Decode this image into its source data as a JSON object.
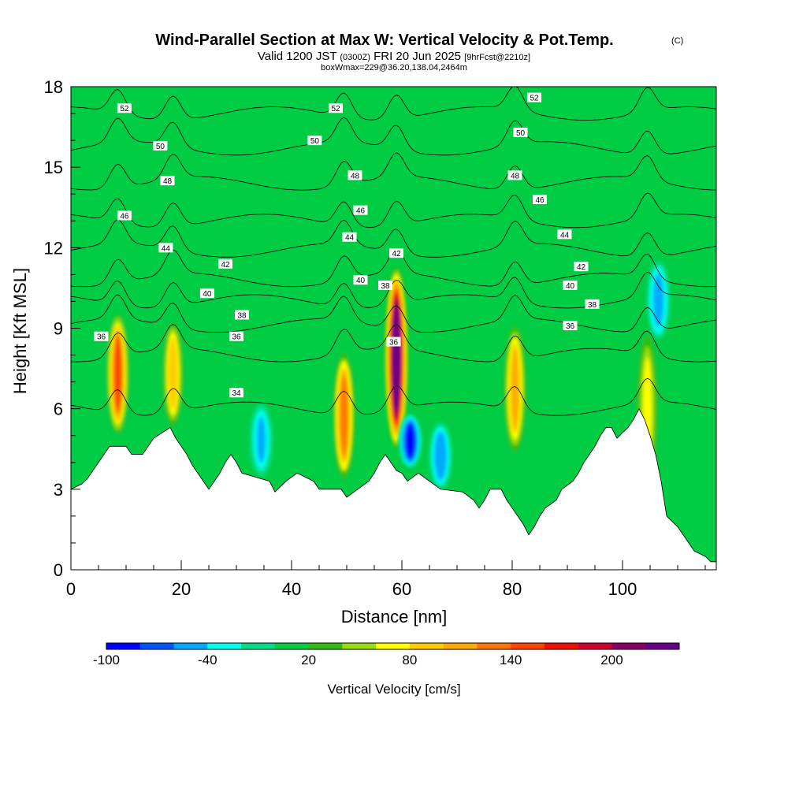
{
  "chart_data": {
    "type": "heatmap",
    "title": {
      "main": "Wind-Parallel Section at Max W: Vertical Velocity & Pot.Temp.",
      "copyright": "(C)",
      "valid_prefix": "Valid 1200 JST",
      "valid_utc": "(0300Z)",
      "valid_date": "FRI 20 Jun 2025",
      "forecast": "[9hrFcst@2210z]",
      "box": "boxWmax=229@36.20,138.04,2464m"
    },
    "xlabel": "Distance [nm]",
    "ylabel": "Height [Kft MSL]",
    "xlim": [
      0,
      117
    ],
    "ylim": [
      0,
      18
    ],
    "x_ticks": [
      "0",
      "20",
      "40",
      "60",
      "80",
      "100"
    ],
    "y_ticks": [
      "0",
      "3",
      "6",
      "9",
      "12",
      "15",
      "18"
    ],
    "colorbar": {
      "label": "Vertical Velocity [cm/s]",
      "tick_labels": [
        "-100",
        "-40",
        "20",
        "80",
        "140",
        "200"
      ],
      "levels": [
        -100,
        -80,
        -60,
        -40,
        -20,
        0,
        20,
        40,
        60,
        80,
        100,
        120,
        140,
        160,
        180,
        200,
        220,
        240
      ],
      "colors": [
        "#0000ff",
        "#0055ff",
        "#00aaff",
        "#00ffee",
        "#00dd88",
        "#00cc44",
        "#33bb11",
        "#99dd11",
        "#ffff00",
        "#ffcc00",
        "#ffaa00",
        "#ff7700",
        "#ff4400",
        "#ee1100",
        "#cc0033",
        "#880066",
        "#660088"
      ]
    },
    "background_w": 0,
    "updrafts": [
      {
        "x": 8.5,
        "y_bottom": 5.0,
        "y_top": 9.6,
        "peak_w": 140
      },
      {
        "x": 18.5,
        "y_bottom": 5.2,
        "y_top": 9.4,
        "peak_w": 90
      },
      {
        "x": 49.5,
        "y_bottom": 3.3,
        "y_top": 8.2,
        "peak_w": 130
      },
      {
        "x": 59.0,
        "y_bottom": 4.5,
        "y_top": 11.3,
        "peak_w": 229
      },
      {
        "x": 80.5,
        "y_bottom": 4.3,
        "y_top": 9.2,
        "peak_w": 110
      },
      {
        "x": 104.5,
        "y_bottom": 3.0,
        "y_top": 9.0,
        "peak_w": 70
      }
    ],
    "downdrafts": [
      {
        "x": 61.5,
        "y_bottom": 3.8,
        "y_top": 5.8,
        "peak_w": -100
      },
      {
        "x": 34.5,
        "y_bottom": 3.5,
        "y_top": 6.2,
        "peak_w": -50
      },
      {
        "x": 67.0,
        "y_bottom": 3.0,
        "y_top": 5.5,
        "peak_w": -60
      },
      {
        "x": 106.5,
        "y_bottom": 8.6,
        "y_top": 11.5,
        "peak_w": -55
      }
    ],
    "terrain": [
      [
        0,
        3.0
      ],
      [
        2,
        3.2
      ],
      [
        3,
        3.4
      ],
      [
        4,
        3.7
      ],
      [
        5,
        4.0
      ],
      [
        6,
        4.3
      ],
      [
        7,
        4.6
      ],
      [
        10,
        4.6
      ],
      [
        11,
        4.3
      ],
      [
        13,
        4.3
      ],
      [
        14,
        4.6
      ],
      [
        15,
        4.9
      ],
      [
        18,
        5.3
      ],
      [
        19,
        4.9
      ],
      [
        20,
        4.6
      ],
      [
        21,
        4.3
      ],
      [
        22,
        3.9
      ],
      [
        23,
        3.6
      ],
      [
        24,
        3.3
      ],
      [
        25,
        3.0
      ],
      [
        26,
        3.3
      ],
      [
        27,
        3.6
      ],
      [
        28,
        4.0
      ],
      [
        29,
        4.3
      ],
      [
        30,
        4.0
      ],
      [
        31,
        3.6
      ],
      [
        36,
        3.3
      ],
      [
        37,
        2.9
      ],
      [
        39,
        3.3
      ],
      [
        41,
        3.6
      ],
      [
        44,
        3.3
      ],
      [
        45,
        3.0
      ],
      [
        49,
        3.0
      ],
      [
        50,
        2.7
      ],
      [
        52,
        3.0
      ],
      [
        54,
        3.3
      ],
      [
        55,
        3.6
      ],
      [
        56,
        4.0
      ],
      [
        57,
        4.3
      ],
      [
        58,
        4.0
      ],
      [
        59,
        3.7
      ],
      [
        60,
        3.6
      ],
      [
        61,
        3.3
      ],
      [
        63,
        3.6
      ],
      [
        65,
        3.3
      ],
      [
        67,
        3.0
      ],
      [
        71,
        2.9
      ],
      [
        73,
        2.6
      ],
      [
        74,
        2.3
      ],
      [
        75,
        2.6
      ],
      [
        76,
        3.0
      ],
      [
        78,
        3.0
      ],
      [
        79,
        2.6
      ],
      [
        80,
        2.3
      ],
      [
        81,
        2.0
      ],
      [
        82,
        1.7
      ],
      [
        83,
        1.3
      ],
      [
        84,
        1.6
      ],
      [
        85,
        2.0
      ],
      [
        86,
        2.3
      ],
      [
        88,
        2.6
      ],
      [
        89,
        3.0
      ],
      [
        91,
        3.3
      ],
      [
        92,
        3.6
      ],
      [
        93,
        4.0
      ],
      [
        94,
        4.3
      ],
      [
        95,
        4.6
      ],
      [
        96,
        5.0
      ],
      [
        97,
        5.3
      ],
      [
        98,
        5.3
      ],
      [
        99,
        4.9
      ],
      [
        101,
        5.3
      ],
      [
        102,
        5.6
      ],
      [
        103,
        6.0
      ],
      [
        104,
        5.6
      ],
      [
        105,
        5.0
      ],
      [
        106,
        4.3
      ],
      [
        107,
        3.3
      ],
      [
        108,
        2.0
      ],
      [
        110,
        1.6
      ],
      [
        111,
        1.3
      ],
      [
        112,
        1.0
      ],
      [
        113,
        0.7
      ],
      [
        115,
        0.5
      ],
      [
        116,
        0.3
      ],
      [
        117,
        0.3
      ]
    ],
    "isentropes": [
      {
        "theta": 34,
        "base": 6.0,
        "label_x": 30
      },
      {
        "theta": 36,
        "base": 8.0,
        "label_x": 30
      },
      {
        "theta": 38,
        "base": 9.1,
        "label_x": 31
      },
      {
        "theta": 40,
        "base": 10.0,
        "label_x": 25
      },
      {
        "theta": 42,
        "base": 10.8,
        "label_x": 28
      },
      {
        "theta": 44,
        "base": 11.9,
        "label_x": 17
      },
      {
        "theta": 46,
        "base": 13.0,
        "label_x": 10
      },
      {
        "theta": 48,
        "base": 14.4,
        "label_x": 17
      },
      {
        "theta": 50,
        "base": 15.7,
        "label_x": 16
      },
      {
        "theta": 52,
        "base": 17.0,
        "label_x": 10
      }
    ],
    "contour_labels": [
      {
        "text": "52",
        "x": 9.7,
        "y": 17.2
      },
      {
        "text": "52",
        "x": 48,
        "y": 17.2
      },
      {
        "text": "52",
        "x": 84,
        "y": 17.6
      },
      {
        "text": "50",
        "x": 16.2,
        "y": 15.8
      },
      {
        "text": "50",
        "x": 44.2,
        "y": 16.0
      },
      {
        "text": "50",
        "x": 81.5,
        "y": 16.3
      },
      {
        "text": "48",
        "x": 17.5,
        "y": 14.5
      },
      {
        "text": "48",
        "x": 51.5,
        "y": 14.7
      },
      {
        "text": "48",
        "x": 80.5,
        "y": 14.7
      },
      {
        "text": "46",
        "x": 9.7,
        "y": 13.2
      },
      {
        "text": "46",
        "x": 52.5,
        "y": 13.4
      },
      {
        "text": "46",
        "x": 85,
        "y": 13.8
      },
      {
        "text": "44",
        "x": 17.2,
        "y": 12.0
      },
      {
        "text": "44",
        "x": 50.5,
        "y": 12.4
      },
      {
        "text": "44",
        "x": 89.5,
        "y": 12.5
      },
      {
        "text": "42",
        "x": 28,
        "y": 11.4
      },
      {
        "text": "42",
        "x": 59,
        "y": 11.8
      },
      {
        "text": "42",
        "x": 92.5,
        "y": 11.3
      },
      {
        "text": "40",
        "x": 24.7,
        "y": 10.3
      },
      {
        "text": "40",
        "x": 52.5,
        "y": 10.8
      },
      {
        "text": "40",
        "x": 90.5,
        "y": 10.6
      },
      {
        "text": "38",
        "x": 31,
        "y": 9.5
      },
      {
        "text": "38",
        "x": 57,
        "y": 10.6
      },
      {
        "text": "38",
        "x": 94.5,
        "y": 9.9
      },
      {
        "text": "36",
        "x": 5.5,
        "y": 8.7
      },
      {
        "text": "36",
        "x": 30,
        "y": 8.7
      },
      {
        "text": "36",
        "x": 58.5,
        "y": 8.5
      },
      {
        "text": "36",
        "x": 90.5,
        "y": 9.1
      },
      {
        "text": "34",
        "x": 30,
        "y": 6.6
      }
    ]
  }
}
